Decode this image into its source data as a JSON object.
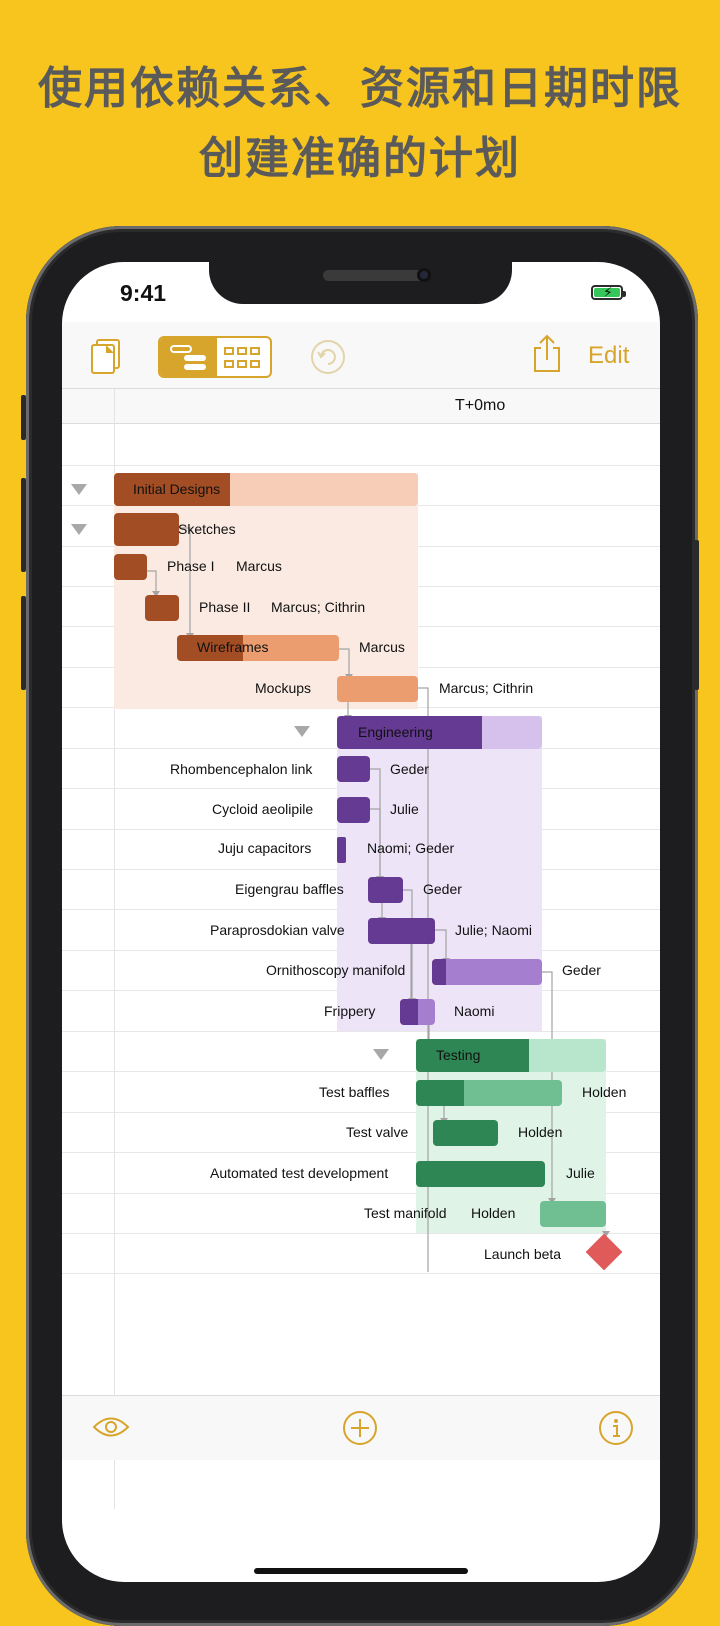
{
  "promo": {
    "line1": "使用依赖关系、资源和日期时限",
    "line2": "创建准确的计划"
  },
  "status_bar": {
    "time": "9:41",
    "battery_charging": true
  },
  "toolbar": {
    "edit_label": "Edit",
    "icons": [
      "documents-icon",
      "gantt-view-icon",
      "network-view-icon",
      "undo-icon",
      "share-icon"
    ],
    "active_view": "gantt",
    "accent_color": "#d7a52c"
  },
  "timeline": {
    "column_label": "T+0mo"
  },
  "groups": {
    "design": {
      "title": "Initial Designs",
      "color": "#a34d24",
      "light": "#f8cdb8",
      "region": "#faeae2"
    },
    "engineering": {
      "title": "Engineering",
      "color": "#653a93",
      "light": "#d6c1ec",
      "region": "#ede4f7"
    },
    "testing": {
      "title": "Testing",
      "color": "#2e8654",
      "light": "#b8e6cc",
      "region": "#dff3e7"
    }
  },
  "tasks": {
    "sketches": {
      "title": "Sketches"
    },
    "phase1": {
      "title": "Phase I",
      "resource": "Marcus"
    },
    "phase2": {
      "title": "Phase II",
      "resource": "Marcus; Cithrin"
    },
    "wireframes": {
      "title": "Wireframes",
      "resource": "Marcus"
    },
    "mockups": {
      "title": "Mockups",
      "resource": "Marcus; Cithrin"
    },
    "rhombencephalon": {
      "title": "Rhombencephalon link",
      "resource": "Geder"
    },
    "cycloid": {
      "title": "Cycloid aeolipile",
      "resource": "Julie"
    },
    "juju": {
      "title": "Juju capacitors",
      "resource": "Naomi; Geder"
    },
    "eigengrau": {
      "title": "Eigengrau baffles",
      "resource": "Geder"
    },
    "paraprosdokian": {
      "title": "Paraprosdokian valve",
      "resource": "Julie; Naomi"
    },
    "ornithoscopy": {
      "title": "Ornithoscopy manifold",
      "resource": "Geder"
    },
    "frippery": {
      "title": "Frippery",
      "resource": "Naomi"
    },
    "test_baffles": {
      "title": "Test baffles",
      "resource": "Holden"
    },
    "test_valve": {
      "title": "Test valve",
      "resource": "Holden"
    },
    "automated_test": {
      "title": "Automated test development",
      "resource": "Julie"
    },
    "test_manifold": {
      "title": "Test manifold",
      "resource": "Holden"
    },
    "launch_beta": {
      "title": "Launch beta",
      "milestone_color": "#e05a5a"
    }
  },
  "bottom_toolbar": {
    "icons": [
      "eye-icon",
      "add-icon",
      "info-icon"
    ]
  }
}
